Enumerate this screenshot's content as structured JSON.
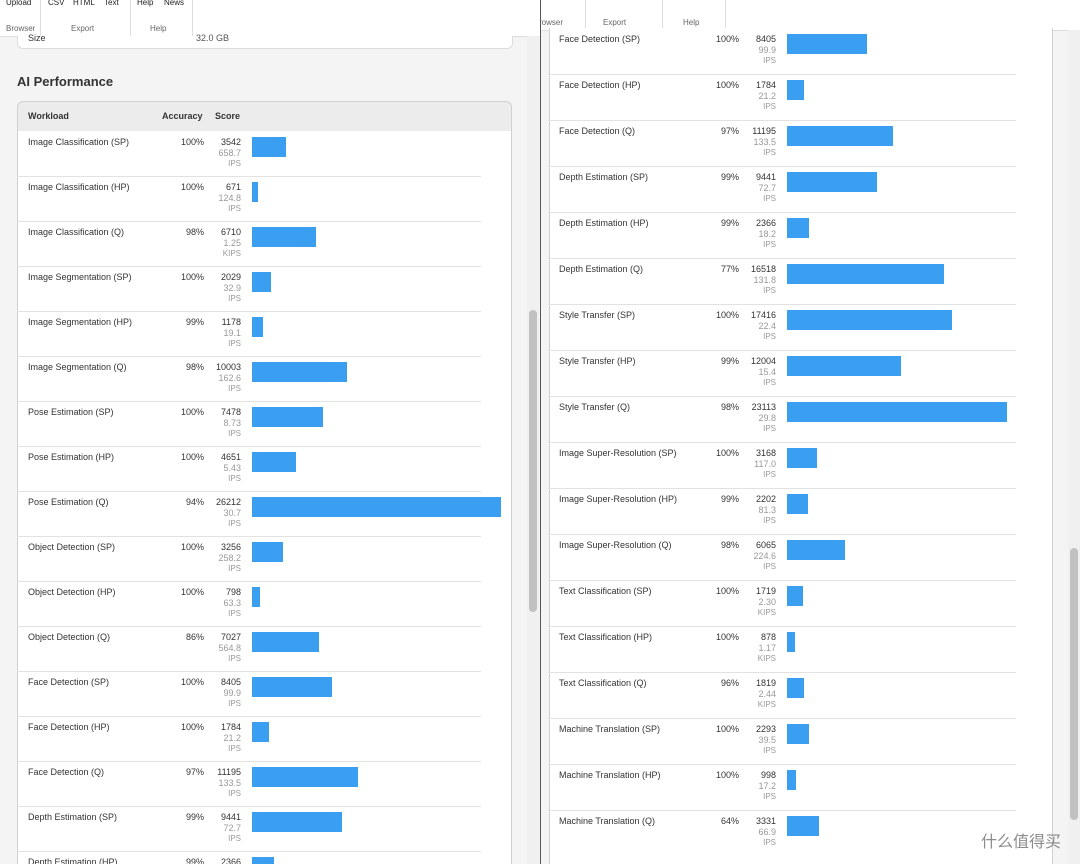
{
  "left": {
    "toolbar": {
      "top": [
        "Upload",
        "CSV",
        "HTML",
        "Text",
        "Help",
        "News"
      ],
      "groups": [
        "Browser",
        "Export",
        "Help"
      ]
    },
    "size_label": "Size",
    "size_value": "32.0 GB",
    "heading": "AI Performance",
    "columns": [
      "Workload",
      "Accuracy",
      "Score"
    ],
    "rows": [
      {
        "name": "Image Classification (SP)",
        "accuracy": "100%",
        "score": 3542,
        "rate": "658.7",
        "unit": "IPS"
      },
      {
        "name": "Image Classification (HP)",
        "accuracy": "100%",
        "score": 671,
        "rate": "124.8",
        "unit": "IPS"
      },
      {
        "name": "Image Classification (Q)",
        "accuracy": "98%",
        "score": 6710,
        "rate": "1.25",
        "unit": "KIPS"
      },
      {
        "name": "Image Segmentation (SP)",
        "accuracy": "100%",
        "score": 2029,
        "rate": "32.9",
        "unit": "IPS"
      },
      {
        "name": "Image Segmentation (HP)",
        "accuracy": "99%",
        "score": 1178,
        "rate": "19.1",
        "unit": "IPS"
      },
      {
        "name": "Image Segmentation (Q)",
        "accuracy": "98%",
        "score": 10003,
        "rate": "162.6",
        "unit": "IPS"
      },
      {
        "name": "Pose Estimation (SP)",
        "accuracy": "100%",
        "score": 7478,
        "rate": "8.73",
        "unit": "IPS"
      },
      {
        "name": "Pose Estimation (HP)",
        "accuracy": "100%",
        "score": 4651,
        "rate": "5.43",
        "unit": "IPS"
      },
      {
        "name": "Pose Estimation (Q)",
        "accuracy": "94%",
        "score": 26212,
        "rate": "30.7",
        "unit": "IPS"
      },
      {
        "name": "Object Detection (SP)",
        "accuracy": "100%",
        "score": 3256,
        "rate": "258.2",
        "unit": "IPS"
      },
      {
        "name": "Object Detection (HP)",
        "accuracy": "100%",
        "score": 798,
        "rate": "63.3",
        "unit": "IPS"
      },
      {
        "name": "Object Detection (Q)",
        "accuracy": "86%",
        "score": 7027,
        "rate": "564.8",
        "unit": "IPS"
      },
      {
        "name": "Face Detection (SP)",
        "accuracy": "100%",
        "score": 8405,
        "rate": "99.9",
        "unit": "IPS"
      },
      {
        "name": "Face Detection (HP)",
        "accuracy": "100%",
        "score": 1784,
        "rate": "21.2",
        "unit": "IPS"
      },
      {
        "name": "Face Detection (Q)",
        "accuracy": "97%",
        "score": 11195,
        "rate": "133.5",
        "unit": "IPS"
      },
      {
        "name": "Depth Estimation (SP)",
        "accuracy": "99%",
        "score": 9441,
        "rate": "72.7",
        "unit": "IPS"
      },
      {
        "name": "Depth Estimation (HP)",
        "accuracy": "99%",
        "score": 2366
      }
    ]
  },
  "right": {
    "toolbar": {
      "groups": [
        "rowser",
        "Export",
        "Help"
      ]
    },
    "rows": [
      {
        "name": "Face Detection (SP)",
        "accuracy": "100%",
        "score": 8405,
        "rate": "99.9",
        "unit": "IPS"
      },
      {
        "name": "Face Detection (HP)",
        "accuracy": "100%",
        "score": 1784,
        "rate": "21.2",
        "unit": "IPS"
      },
      {
        "name": "Face Detection (Q)",
        "accuracy": "97%",
        "score": 11195,
        "rate": "133.5",
        "unit": "IPS"
      },
      {
        "name": "Depth Estimation (SP)",
        "accuracy": "99%",
        "score": 9441,
        "rate": "72.7",
        "unit": "IPS"
      },
      {
        "name": "Depth Estimation (HP)",
        "accuracy": "99%",
        "score": 2366,
        "rate": "18.2",
        "unit": "IPS"
      },
      {
        "name": "Depth Estimation (Q)",
        "accuracy": "77%",
        "score": 16518,
        "rate": "131.8",
        "unit": "IPS"
      },
      {
        "name": "Style Transfer (SP)",
        "accuracy": "100%",
        "score": 17416,
        "rate": "22.4",
        "unit": "IPS"
      },
      {
        "name": "Style Transfer (HP)",
        "accuracy": "99%",
        "score": 12004,
        "rate": "15.4",
        "unit": "IPS"
      },
      {
        "name": "Style Transfer (Q)",
        "accuracy": "98%",
        "score": 23113,
        "rate": "29.8",
        "unit": "IPS"
      },
      {
        "name": "Image Super-Resolution (SP)",
        "accuracy": "100%",
        "score": 3168,
        "rate": "117.0",
        "unit": "IPS"
      },
      {
        "name": "Image Super-Resolution (HP)",
        "accuracy": "99%",
        "score": 2202,
        "rate": "81.3",
        "unit": "IPS"
      },
      {
        "name": "Image Super-Resolution (Q)",
        "accuracy": "98%",
        "score": 6065,
        "rate": "224.6",
        "unit": "IPS"
      },
      {
        "name": "Text Classification (SP)",
        "accuracy": "100%",
        "score": 1719,
        "rate": "2.30",
        "unit": "KIPS"
      },
      {
        "name": "Text Classification (HP)",
        "accuracy": "100%",
        "score": 878,
        "rate": "1.17",
        "unit": "KIPS"
      },
      {
        "name": "Text Classification (Q)",
        "accuracy": "96%",
        "score": 1819,
        "rate": "2.44",
        "unit": "KIPS"
      },
      {
        "name": "Machine Translation (SP)",
        "accuracy": "100%",
        "score": 2293,
        "rate": "39.5",
        "unit": "IPS"
      },
      {
        "name": "Machine Translation (HP)",
        "accuracy": "100%",
        "score": 998,
        "rate": "17.2",
        "unit": "IPS"
      },
      {
        "name": "Machine Translation (Q)",
        "accuracy": "64%",
        "score": 3331,
        "rate": "66.9",
        "unit": "IPS"
      }
    ]
  },
  "watermark": "什么值得买"
}
